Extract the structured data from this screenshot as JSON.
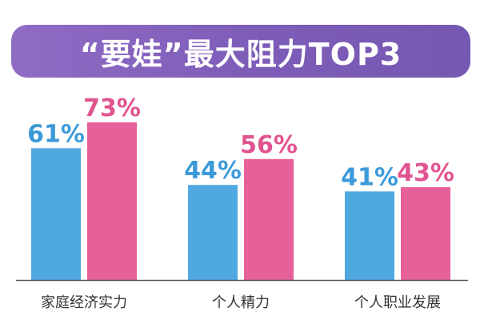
{
  "title": "“要娃”最大阻力TOP3",
  "colors": {
    "banner": "#7d5cb8",
    "series_blue": "#4fa8e0",
    "series_pink": "#e6609a",
    "label_blue": "#3b9ad9",
    "label_pink": "#e0548f",
    "axis": "#555555"
  },
  "chart_data": {
    "type": "bar",
    "categories": [
      "家庭经济实力",
      "个人精力",
      "个人职业发展"
    ],
    "series": [
      {
        "values": [
          61,
          44,
          41
        ]
      },
      {
        "values": [
          73,
          56,
          43
        ]
      }
    ],
    "data_labels": [
      [
        "61%",
        "44%",
        "41%"
      ],
      [
        "73%",
        "56%",
        "43%"
      ]
    ],
    "unit": "%",
    "ylim": [
      0,
      100
    ],
    "grid": false,
    "legend": "none"
  }
}
